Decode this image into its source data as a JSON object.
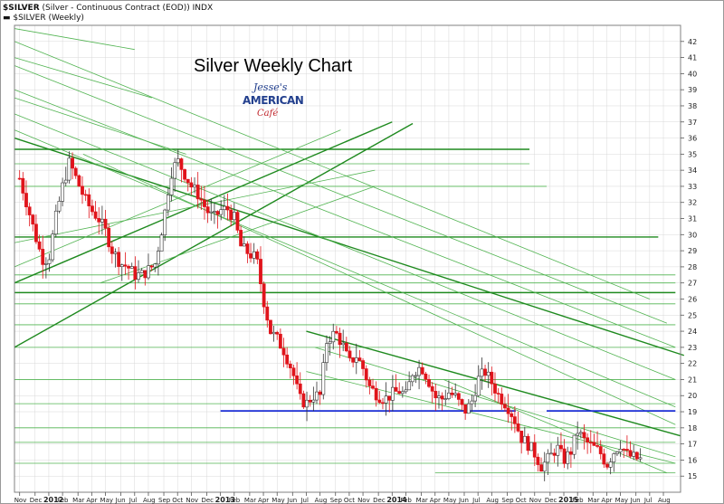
{
  "header": {
    "symbol": "$SILVER",
    "description": " (Silver - Continuous Contract (EOD))  INDX",
    "legend_line": "▬ $SILVER (Weekly)"
  },
  "logo": {
    "line1": "Jesse's",
    "line2": "AMERICAN",
    "line3": "Café"
  },
  "colors": {
    "up_body": "#ffffff",
    "up_edge": "#333333",
    "down": "#e0141b",
    "trend": "#1f8a1f",
    "trend_light": "#52b452",
    "support": "#1c2fd6",
    "grid": "#d8d8d8"
  },
  "chart_data": {
    "type": "candlestick",
    "title": "Silver Weekly Chart",
    "ylim": [
      14,
      43
    ],
    "yticks": [
      15,
      16,
      17,
      18,
      19,
      20,
      21,
      22,
      23,
      24,
      25,
      26,
      27,
      28,
      29,
      30,
      31,
      32,
      33,
      34,
      35,
      36,
      37,
      38,
      39,
      40,
      41,
      42
    ],
    "xlim": [
      2011.8,
      2015.68
    ],
    "x_ticks": [
      {
        "label": "Nov",
        "x": 2011.83
      },
      {
        "label": "Dec",
        "x": 2011.92
      },
      {
        "label": "2012",
        "x": 2012.0
      },
      {
        "label": "Feb",
        "x": 2012.08
      },
      {
        "label": "Mar",
        "x": 2012.17
      },
      {
        "label": "Apr",
        "x": 2012.25
      },
      {
        "label": "May",
        "x": 2012.33
      },
      {
        "label": "Jun",
        "x": 2012.42
      },
      {
        "label": "Jul",
        "x": 2012.5
      },
      {
        "label": "Aug",
        "x": 2012.58
      },
      {
        "label": "Sep",
        "x": 2012.67
      },
      {
        "label": "Oct",
        "x": 2012.75
      },
      {
        "label": "Nov",
        "x": 2012.83
      },
      {
        "label": "Dec",
        "x": 2012.92
      },
      {
        "label": "2013",
        "x": 2013.0
      },
      {
        "label": "Feb",
        "x": 2013.08
      },
      {
        "label": "Mar",
        "x": 2013.17
      },
      {
        "label": "Apr",
        "x": 2013.25
      },
      {
        "label": "May",
        "x": 2013.33
      },
      {
        "label": "Jun",
        "x": 2013.42
      },
      {
        "label": "Jul",
        "x": 2013.5
      },
      {
        "label": "Aug",
        "x": 2013.58
      },
      {
        "label": "Sep",
        "x": 2013.67
      },
      {
        "label": "Oct",
        "x": 2013.75
      },
      {
        "label": "Nov",
        "x": 2013.83
      },
      {
        "label": "Dec",
        "x": 2013.92
      },
      {
        "label": "2014",
        "x": 2014.0
      },
      {
        "label": "Feb",
        "x": 2014.08
      },
      {
        "label": "Mar",
        "x": 2014.17
      },
      {
        "label": "Apr",
        "x": 2014.25
      },
      {
        "label": "May",
        "x": 2014.33
      },
      {
        "label": "Jun",
        "x": 2014.42
      },
      {
        "label": "Jul",
        "x": 2014.5
      },
      {
        "label": "Aug",
        "x": 2014.58
      },
      {
        "label": "Sep",
        "x": 2014.67
      },
      {
        "label": "Oct",
        "x": 2014.75
      },
      {
        "label": "Nov",
        "x": 2014.83
      },
      {
        "label": "Dec",
        "x": 2014.92
      },
      {
        "label": "2015",
        "x": 2015.0
      },
      {
        "label": "Feb",
        "x": 2015.08
      },
      {
        "label": "Mar",
        "x": 2015.17
      },
      {
        "label": "Apr",
        "x": 2015.25
      },
      {
        "label": "May",
        "x": 2015.33
      },
      {
        "label": "Jun",
        "x": 2015.42
      },
      {
        "label": "Jul",
        "x": 2015.5
      },
      {
        "label": "Aug",
        "x": 2015.58
      }
    ],
    "close_path": [
      [
        2011.83,
        33.5
      ],
      [
        2011.87,
        32
      ],
      [
        2011.92,
        30
      ],
      [
        2011.96,
        28.5
      ],
      [
        2012.0,
        28.5
      ],
      [
        2012.04,
        31
      ],
      [
        2012.08,
        33
      ],
      [
        2012.12,
        34.5
      ],
      [
        2012.17,
        33.2
      ],
      [
        2012.21,
        32.2
      ],
      [
        2012.25,
        31.5
      ],
      [
        2012.29,
        31
      ],
      [
        2012.33,
        30.2
      ],
      [
        2012.37,
        29
      ],
      [
        2012.42,
        28.2
      ],
      [
        2012.46,
        28
      ],
      [
        2012.5,
        27.5
      ],
      [
        2012.54,
        27.5
      ],
      [
        2012.58,
        27.8
      ],
      [
        2012.62,
        28.2
      ],
      [
        2012.67,
        31
      ],
      [
        2012.71,
        33.8
      ],
      [
        2012.75,
        34.6
      ],
      [
        2012.79,
        33.8
      ],
      [
        2012.83,
        33
      ],
      [
        2012.87,
        32.5
      ],
      [
        2012.92,
        31.5
      ],
      [
        2012.96,
        31
      ],
      [
        2013.0,
        31.5
      ],
      [
        2013.04,
        31.6
      ],
      [
        2013.08,
        31
      ],
      [
        2013.12,
        29.2
      ],
      [
        2013.17,
        28.8
      ],
      [
        2013.21,
        28.5
      ],
      [
        2013.25,
        26
      ],
      [
        2013.29,
        24
      ],
      [
        2013.33,
        23.5
      ],
      [
        2013.37,
        22.8
      ],
      [
        2013.42,
        21.5
      ],
      [
        2013.46,
        19.8
      ],
      [
        2013.5,
        19.5
      ],
      [
        2013.54,
        20
      ],
      [
        2013.58,
        20
      ],
      [
        2013.62,
        23.5
      ],
      [
        2013.67,
        23.9
      ],
      [
        2013.71,
        23.2
      ],
      [
        2013.75,
        22
      ],
      [
        2013.79,
        22.5
      ],
      [
        2013.83,
        21.7
      ],
      [
        2013.87,
        20.5
      ],
      [
        2013.92,
        20
      ],
      [
        2013.96,
        19.8
      ],
      [
        2014.0,
        20.1
      ],
      [
        2014.04,
        20.3
      ],
      [
        2014.08,
        20
      ],
      [
        2014.12,
        21.5
      ],
      [
        2014.17,
        21.8
      ],
      [
        2014.21,
        21
      ],
      [
        2014.25,
        19.9
      ],
      [
        2014.29,
        19.8
      ],
      [
        2014.33,
        20.2
      ],
      [
        2014.37,
        19.9
      ],
      [
        2014.42,
        19
      ],
      [
        2014.46,
        19.5
      ],
      [
        2014.5,
        21
      ],
      [
        2014.54,
        21.5
      ],
      [
        2014.58,
        20.8
      ],
      [
        2014.62,
        20
      ],
      [
        2014.67,
        19.4
      ],
      [
        2014.71,
        18.6
      ],
      [
        2014.75,
        17.4
      ],
      [
        2014.79,
        17
      ],
      [
        2014.83,
        16.4
      ],
      [
        2014.87,
        15.6
      ],
      [
        2014.92,
        16.2
      ],
      [
        2014.96,
        16.8
      ],
      [
        2015.0,
        16
      ],
      [
        2015.04,
        16.5
      ],
      [
        2015.08,
        17.8
      ],
      [
        2015.12,
        17.2
      ],
      [
        2015.17,
        16.8
      ],
      [
        2015.21,
        16.5
      ],
      [
        2015.25,
        15.7
      ],
      [
        2015.29,
        16.5
      ],
      [
        2015.33,
        17
      ],
      [
        2015.37,
        16.3
      ],
      [
        2015.42,
        16.1
      ],
      [
        2015.46,
        16
      ]
    ],
    "horizontal_lines": [
      {
        "y": 35.3,
        "x0": 2011.8,
        "x1": 2014.8,
        "style": "dark"
      },
      {
        "y": 34.4,
        "x0": 2011.8,
        "x1": 2014.8,
        "style": "light"
      },
      {
        "y": 33.0,
        "x0": 2011.8,
        "x1": 2014.9,
        "style": "light"
      },
      {
        "y": 29.85,
        "x0": 2011.8,
        "x1": 2015.55,
        "style": "dark"
      },
      {
        "y": 27.5,
        "x0": 2011.8,
        "x1": 2015.65,
        "style": "light"
      },
      {
        "y": 27.0,
        "x0": 2011.8,
        "x1": 2015.65,
        "style": "light"
      },
      {
        "y": 26.4,
        "x0": 2011.8,
        "x1": 2015.65,
        "style": "dark"
      },
      {
        "y": 25.7,
        "x0": 2011.8,
        "x1": 2015.65,
        "style": "light"
      },
      {
        "y": 24.4,
        "x0": 2011.8,
        "x1": 2015.65,
        "style": "light"
      },
      {
        "y": 23.0,
        "x0": 2011.8,
        "x1": 2015.65,
        "style": "light"
      },
      {
        "y": 21.0,
        "x0": 2011.8,
        "x1": 2015.65,
        "style": "light"
      },
      {
        "y": 19.5,
        "x0": 2011.8,
        "x1": 2015.65,
        "style": "light"
      },
      {
        "y": 18.0,
        "x0": 2011.8,
        "x1": 2015.65,
        "style": "light"
      },
      {
        "y": 17.1,
        "x0": 2011.8,
        "x1": 2015.65,
        "style": "light"
      },
      {
        "y": 15.8,
        "x0": 2011.8,
        "x1": 2015.65,
        "style": "light"
      },
      {
        "y": 15.2,
        "x0": 2014.25,
        "x1": 2015.65,
        "style": "light"
      }
    ],
    "support_lines": [
      {
        "y": 19.05,
        "x0": 2013.0,
        "x1": 2014.72
      },
      {
        "y": 19.05,
        "x0": 2014.9,
        "x1": 2015.65
      }
    ],
    "trend_lines": [
      {
        "x0": 2011.8,
        "y0": 23.0,
        "x1": 2014.12,
        "y1": 36.9,
        "style": "dark"
      },
      {
        "x0": 2011.8,
        "y0": 27.0,
        "x1": 2014.0,
        "y1": 37.0,
        "style": "dark"
      },
      {
        "x0": 2011.8,
        "y0": 28.0,
        "x1": 2013.7,
        "y1": 36.5,
        "style": "light"
      },
      {
        "x0": 2011.8,
        "y0": 29.5,
        "x1": 2013.9,
        "y1": 34.0,
        "style": "light"
      },
      {
        "x0": 2012.3,
        "y0": 27.0,
        "x1": 2013.9,
        "y1": 33.0,
        "style": "light"
      },
      {
        "x0": 2011.8,
        "y0": 36.0,
        "x1": 2015.7,
        "y1": 22.5,
        "style": "dark"
      },
      {
        "x0": 2011.8,
        "y0": 42.0,
        "x1": 2015.5,
        "y1": 26.0,
        "style": "light"
      },
      {
        "x0": 2011.8,
        "y0": 40.5,
        "x1": 2015.6,
        "y1": 24.5,
        "style": "light"
      },
      {
        "x0": 2011.8,
        "y0": 39.0,
        "x1": 2015.65,
        "y1": 23.0,
        "style": "light"
      },
      {
        "x0": 2011.8,
        "y0": 37.5,
        "x1": 2015.65,
        "y1": 21.0,
        "style": "light"
      },
      {
        "x0": 2011.8,
        "y0": 36.5,
        "x1": 2015.65,
        "y1": 19.3,
        "style": "light"
      },
      {
        "x0": 2012.2,
        "y0": 35.0,
        "x1": 2015.65,
        "y1": 18.2,
        "style": "light"
      },
      {
        "x0": 2013.5,
        "y0": 24.0,
        "x1": 2015.68,
        "y1": 17.5,
        "style": "dark"
      },
      {
        "x0": 2013.55,
        "y0": 23.0,
        "x1": 2015.65,
        "y1": 16.2,
        "style": "light"
      },
      {
        "x0": 2013.5,
        "y0": 21.5,
        "x1": 2015.65,
        "y1": 15.8,
        "style": "light"
      },
      {
        "x0": 2014.3,
        "y0": 21.0,
        "x1": 2015.6,
        "y1": 15.2,
        "style": "light"
      },
      {
        "x0": 2011.8,
        "y0": 42.8,
        "x1": 2012.5,
        "y1": 41.5,
        "style": "light"
      },
      {
        "x0": 2011.8,
        "y0": 41.0,
        "x1": 2012.6,
        "y1": 38.5,
        "style": "light"
      },
      {
        "x0": 2011.8,
        "y0": 38.5,
        "x1": 2012.8,
        "y1": 35.0,
        "style": "light"
      }
    ]
  }
}
